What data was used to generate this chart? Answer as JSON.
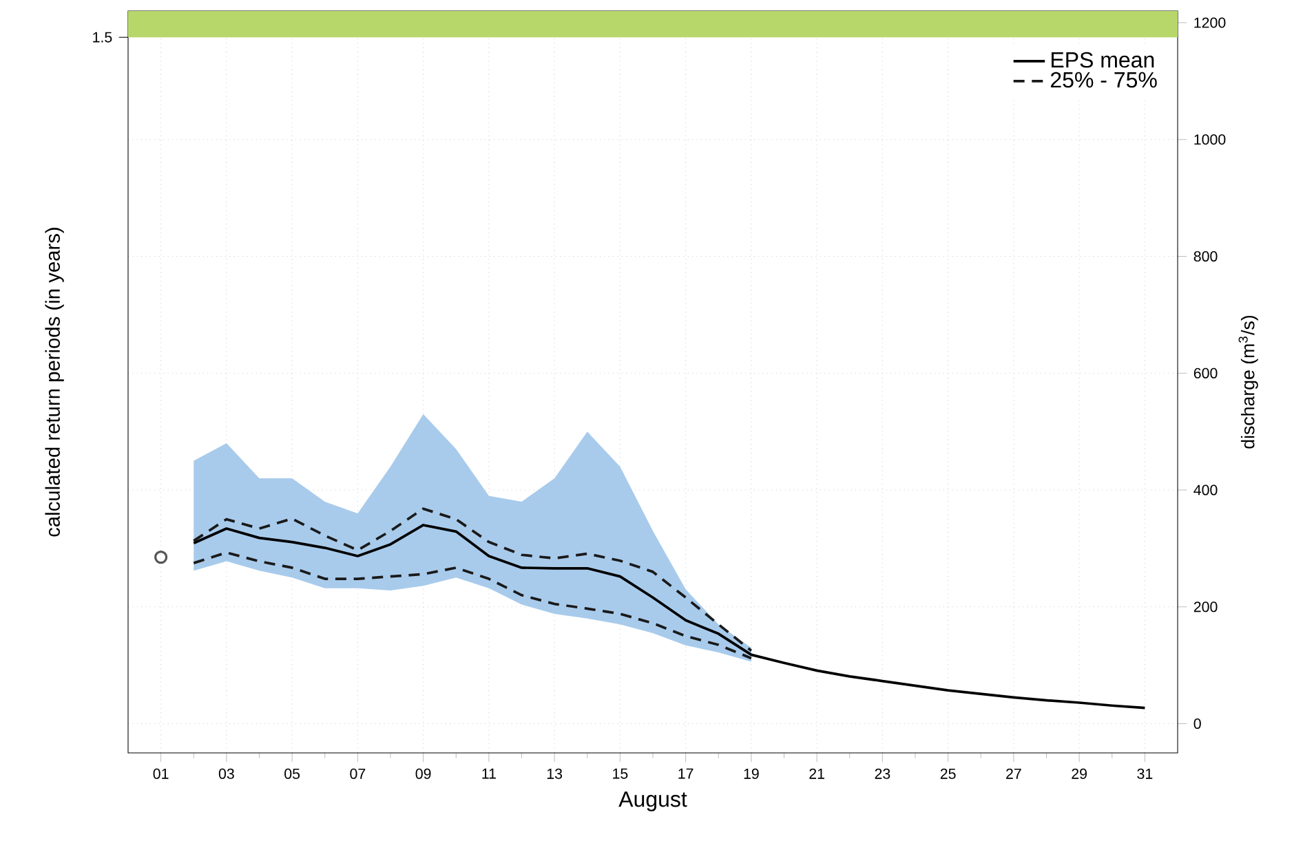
{
  "chart_data": {
    "type": "line",
    "xlabel": "August",
    "ylabel": "calculated return periods (in years)",
    "y2label": "discharge (m$^{3}$/s)",
    "xlim": [
      0,
      32
    ],
    "xticks": [
      {
        "value": 1,
        "label": "01"
      },
      {
        "value": 3,
        "label": "03"
      },
      {
        "value": 5,
        "label": "05"
      },
      {
        "value": 7,
        "label": "07"
      },
      {
        "value": 9,
        "label": "09"
      },
      {
        "value": 11,
        "label": "11"
      },
      {
        "value": 13,
        "label": "13"
      },
      {
        "value": 15,
        "label": "15"
      },
      {
        "value": 17,
        "label": "17"
      },
      {
        "value": 19,
        "label": "19"
      },
      {
        "value": 21,
        "label": "21"
      },
      {
        "value": 23,
        "label": "23"
      },
      {
        "value": 25,
        "label": "25"
      },
      {
        "value": 27,
        "label": "27"
      },
      {
        "value": 29,
        "label": "29"
      },
      {
        "value": 31,
        "label": "31"
      }
    ],
    "y2lim": [
      -50,
      1220
    ],
    "y2ticks": [
      0,
      200,
      400,
      600,
      800,
      1000,
      1200
    ],
    "bands": [
      {
        "axis": "y2",
        "from": 1175,
        "to": 1220,
        "label": "1.5",
        "color": "#b8d76a"
      }
    ],
    "grid": true,
    "legend": "top right",
    "series": [
      {
        "name": "EPS mean",
        "axis": "y2",
        "color": "#000000",
        "line_style": "solid",
        "x": [
          2,
          3,
          4,
          5,
          6,
          7,
          8,
          9,
          10,
          11,
          12,
          13,
          14,
          15,
          16,
          17,
          18,
          19,
          20,
          21,
          22,
          23,
          24,
          25,
          26,
          27,
          28,
          29,
          30,
          31
        ],
        "values": [
          309,
          334,
          318,
          311,
          301,
          287,
          307,
          340,
          329,
          287,
          267,
          266,
          266,
          252,
          216,
          177,
          154,
          118,
          104,
          91,
          81,
          73,
          65,
          57,
          51,
          45,
          40,
          36,
          31,
          27
        ],
        "lower": [
          262,
          278,
          262,
          250,
          232,
          232,
          228,
          236,
          250,
          232,
          204,
          188,
          180,
          170,
          155,
          134,
          122,
          106,
          null,
          null,
          null,
          null,
          null,
          null,
          null,
          null,
          null,
          null,
          null,
          null
        ],
        "upper": [
          450,
          480,
          420,
          420,
          380,
          360,
          440,
          530,
          470,
          390,
          380,
          420,
          500,
          440,
          330,
          230,
          170,
          130,
          null,
          null,
          null,
          null,
          null,
          null,
          null,
          null,
          null,
          null,
          null,
          null
        ]
      },
      {
        "name": "25% - 75%",
        "axis": "y2",
        "color": "#1a1a1a",
        "line_style": "dashed",
        "x": [
          2,
          3,
          4,
          5,
          6,
          7,
          8,
          9,
          10,
          11,
          12,
          13,
          14,
          15,
          16,
          17,
          18,
          19
        ],
        "values": [
          313,
          350,
          334,
          351,
          322,
          297,
          330,
          368,
          350,
          311,
          289,
          283,
          291,
          279,
          260,
          216,
          170,
          125
        ]
      },
      {
        "axis": "y2",
        "color": "#1a1a1a",
        "line_style": "dashed",
        "x": [
          2,
          3,
          4,
          5,
          6,
          7,
          8,
          9,
          10,
          11,
          12,
          13,
          14,
          15,
          16,
          17,
          18,
          19
        ],
        "values": [
          275,
          293,
          278,
          267,
          248,
          248,
          252,
          256,
          267,
          248,
          220,
          205,
          197,
          188,
          172,
          150,
          135,
          112
        ]
      },
      {
        "type": "scatter",
        "axis": "y2",
        "color": "#555555",
        "marker": "circle",
        "x": [
          1
        ],
        "values": [
          285
        ]
      }
    ]
  }
}
